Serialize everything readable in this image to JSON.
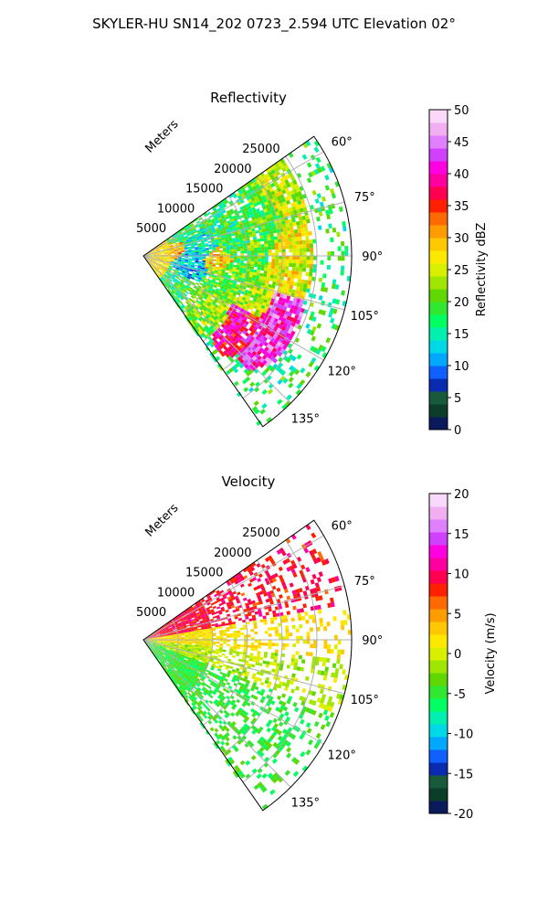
{
  "figure": {
    "title": "SKYLER-HU  SN14_202  0723_2.594 UTC Elevation 02°"
  },
  "chart_data": [
    {
      "type": "heatmap",
      "subtype": "polar-sector (radar PPI)",
      "title": "Reflectivity",
      "radial_label": "Meters",
      "radial_ticks": [
        "5000",
        "10000",
        "15000",
        "20000",
        "25000"
      ],
      "radial_tick_values": [
        5000,
        10000,
        15000,
        20000,
        25000
      ],
      "angle_ticks": [
        "60°",
        "75°",
        "90°",
        "105°",
        "120°",
        "135°"
      ],
      "angle_tick_values": [
        60,
        75,
        90,
        105,
        120,
        135
      ],
      "theta_range_deg": [
        55,
        145
      ],
      "r_range_m": [
        0,
        30000
      ],
      "grid": true,
      "colorbar": {
        "label": "Reflectivity dBZ",
        "range": [
          0,
          50
        ],
        "ticks": [
          "0",
          "5",
          "10",
          "15",
          "20",
          "25",
          "30",
          "35",
          "40",
          "45",
          "50"
        ],
        "colors": [
          "#0a1a5c",
          "#0a3d2a",
          "#175a3c",
          "#0a2bb0",
          "#1060ff",
          "#00a8ff",
          "#00d8e8",
          "#00f0b0",
          "#00ff60",
          "#30e830",
          "#60d800",
          "#a0e600",
          "#d8f000",
          "#ffe800",
          "#ffc800",
          "#ff9c00",
          "#ff6a00",
          "#ff2000",
          "#ff0050",
          "#ff00a0",
          "#ff00e0",
          "#d040ff",
          "#e080ff",
          "#f0b0f0",
          "#fad8fa"
        ]
      },
      "echo_features": [
        {
          "az": 66,
          "r": 21000,
          "value": 24
        },
        {
          "az": 70,
          "r": 18500,
          "value": 20
        },
        {
          "az": 77,
          "r": 12000,
          "value": 18
        },
        {
          "az": 84,
          "r": 9000,
          "value": 14
        },
        {
          "az": 90,
          "r": 10000,
          "value": 28
        },
        {
          "az": 91,
          "r": 21000,
          "value": 26
        },
        {
          "az": 97,
          "r": 7000,
          "value": 12
        },
        {
          "az": 100,
          "r": 15000,
          "value": 20
        },
        {
          "az": 108,
          "r": 12000,
          "value": 20
        },
        {
          "az": 112,
          "r": 17000,
          "value": 24
        },
        {
          "az": 118,
          "r": 21000,
          "value": 42
        },
        {
          "az": 122,
          "r": 17000,
          "value": 38
        },
        {
          "az": 127,
          "r": 12000,
          "value": 22
        },
        {
          "az": 84,
          "r": 3000,
          "value": 30
        }
      ]
    },
    {
      "type": "heatmap",
      "subtype": "polar-sector (radar PPI)",
      "title": "Velocity",
      "radial_label": "Meters",
      "radial_ticks": [
        "5000",
        "10000",
        "15000",
        "20000",
        "25000"
      ],
      "radial_tick_values": [
        5000,
        10000,
        15000,
        20000,
        25000
      ],
      "angle_ticks": [
        "60°",
        "75°",
        "90°",
        "105°",
        "120°",
        "135°"
      ],
      "angle_tick_values": [
        60,
        75,
        90,
        105,
        120,
        135
      ],
      "theta_range_deg": [
        55,
        145
      ],
      "r_range_m": [
        0,
        30000
      ],
      "grid": true,
      "colorbar": {
        "label": "Velocity (m/s)",
        "range": [
          -20,
          20
        ],
        "ticks": [
          "-20",
          "-15",
          "-10",
          "-5",
          "0",
          "5",
          "10",
          "15",
          "20"
        ],
        "colors": [
          "#0a1a5c",
          "#0a3d2a",
          "#175a3c",
          "#0a2bb0",
          "#1060ff",
          "#00a8ff",
          "#00d8e8",
          "#00f0b0",
          "#00ff60",
          "#30e830",
          "#60d800",
          "#a0e600",
          "#d8f000",
          "#ffe800",
          "#ffc800",
          "#ff9c00",
          "#ff6a00",
          "#ff2000",
          "#ff0050",
          "#ff00a0",
          "#ff00e0",
          "#d040ff",
          "#e080ff",
          "#f0b0f0",
          "#fad8fa"
        ]
      },
      "velocity_pattern": [
        {
          "az_range": [
            55,
            80
          ],
          "value": 9
        },
        {
          "az_range": [
            80,
            95
          ],
          "value": 2
        },
        {
          "az_range": [
            95,
            110
          ],
          "value": -1
        },
        {
          "az_range": [
            110,
            145
          ],
          "value": -5
        }
      ]
    }
  ]
}
